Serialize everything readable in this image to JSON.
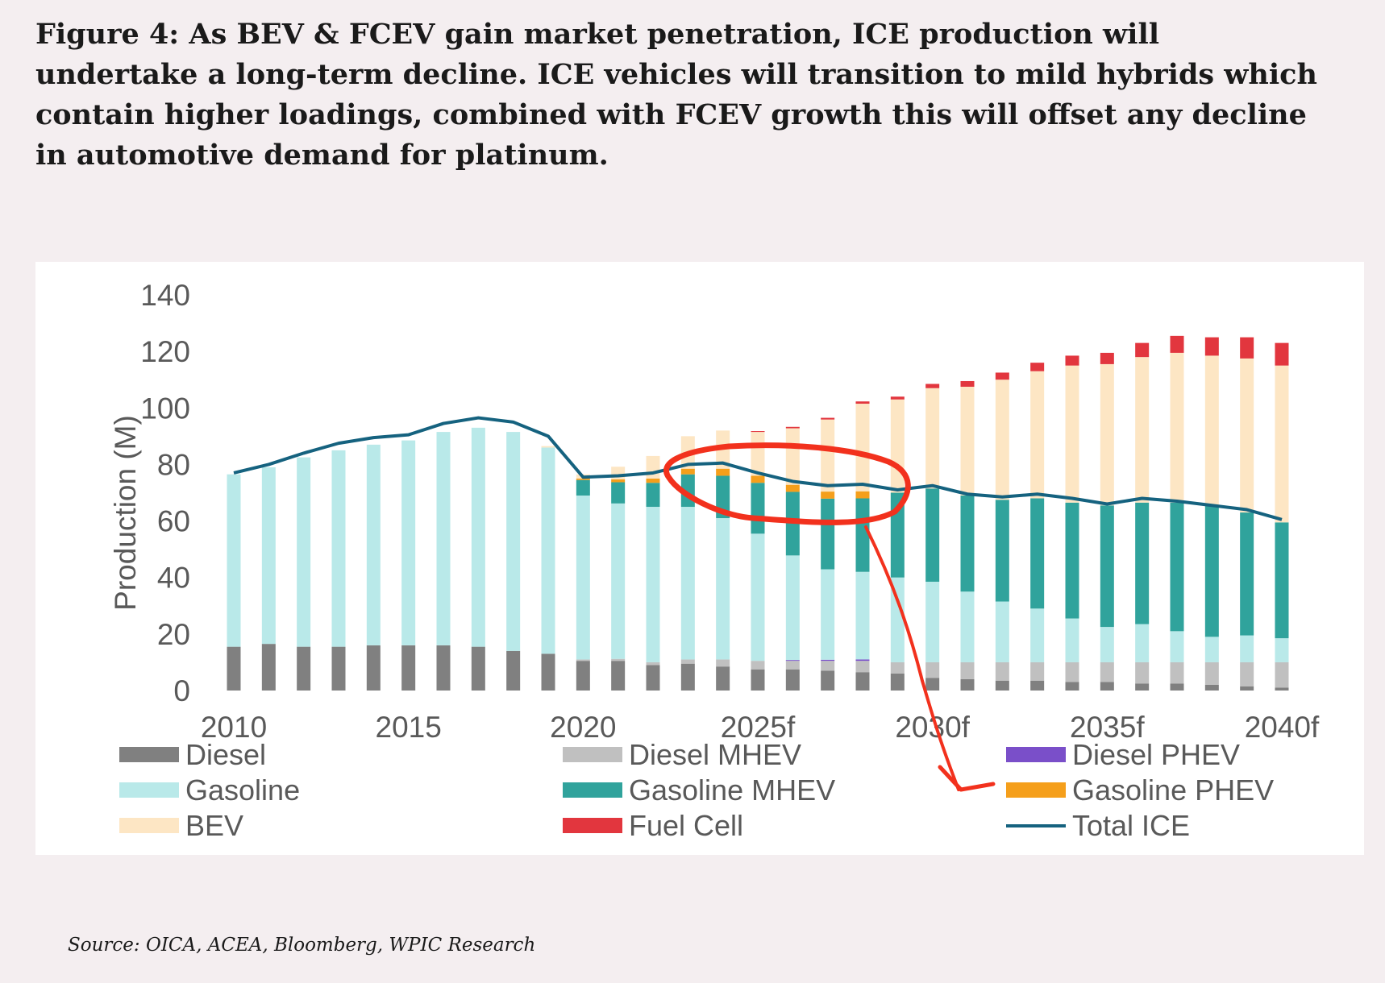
{
  "caption": "Figure 4: As BEV & FCEV gain market penetration, ICE production will undertake a long-term decline. ICE vehicles will transition to mild hybrids which contain higher loadings, combined with FCEV growth this will offset any decline in automotive demand for platinum.",
  "source": "Source: OICA, ACEA, Bloomberg, WPIC Research",
  "colors": {
    "diesel": "#808080",
    "diesel_mhev": "#c0c0c0",
    "diesel_phev": "#7a4fc9",
    "gasoline": "#b9e9e9",
    "gasoline_mhev": "#30a39c",
    "gasoline_phev": "#f59f1b",
    "bev": "#fde6c4",
    "fuel_cell": "#e2363e",
    "total_ice": "#15627f",
    "annotation": "#f2311d"
  },
  "chart_data": {
    "type": "bar",
    "stacked": true,
    "title": "",
    "xlabel": "",
    "ylabel": "Production (M)",
    "ylim": [
      0,
      140
    ],
    "yticks": [
      0,
      20,
      40,
      60,
      80,
      100,
      120,
      140
    ],
    "grid": false,
    "legend_position": "bottom",
    "categories": [
      "2010",
      "2011",
      "2012",
      "2013",
      "2014",
      "2015",
      "2016",
      "2017",
      "2018",
      "2019",
      "2020",
      "2021",
      "2022",
      "2023",
      "2024",
      "2025f",
      "2026f",
      "2027f",
      "2028f",
      "2029f",
      "2030f",
      "2031f",
      "2032f",
      "2033f",
      "2034f",
      "2035f",
      "2036f",
      "2037f",
      "2038f",
      "2039f",
      "2040f"
    ],
    "x_tick_labels": [
      {
        "index": 0,
        "label": "2010"
      },
      {
        "index": 5,
        "label": "2015"
      },
      {
        "index": 10,
        "label": "2020"
      },
      {
        "index": 15,
        "label": "2025f"
      },
      {
        "index": 20,
        "label": "2030f"
      },
      {
        "index": 25,
        "label": "2035f"
      },
      {
        "index": 30,
        "label": "2040f"
      }
    ],
    "series": [
      {
        "key": "diesel",
        "name": "Diesel",
        "values": [
          15.5,
          16.5,
          15.5,
          15.5,
          16,
          16,
          16,
          15.5,
          14,
          13,
          10.5,
          10.5,
          9,
          9.5,
          8.5,
          7.5,
          7.5,
          7,
          6.5,
          6,
          4.5,
          4,
          3.5,
          3.5,
          3,
          3,
          2.5,
          2.5,
          2,
          1.5,
          1
        ]
      },
      {
        "key": "diesel_mhev",
        "name": "Diesel MHEV",
        "values": [
          0,
          0,
          0,
          0,
          0,
          0,
          0,
          0,
          0,
          0,
          0.5,
          0.7,
          1,
          1.5,
          2.5,
          3,
          3,
          3.5,
          4,
          4,
          5.5,
          6,
          6.5,
          6.5,
          7,
          7,
          7.5,
          7.5,
          8,
          8.5,
          9
        ]
      },
      {
        "key": "diesel_phev",
        "name": "Diesel PHEV",
        "values": [
          0,
          0,
          0,
          0,
          0,
          0,
          0,
          0,
          0,
          0,
          0,
          0,
          0,
          0,
          0,
          0,
          0.3,
          0.4,
          0.5,
          0,
          0,
          0,
          0,
          0,
          0,
          0,
          0,
          0,
          0,
          0,
          0
        ]
      },
      {
        "key": "gasoline",
        "name": "Gasoline",
        "values": [
          61,
          62.5,
          67,
          69.5,
          71,
          72.5,
          75.5,
          77.5,
          77.5,
          73,
          58,
          55,
          55,
          54,
          50,
          45,
          37,
          32,
          31,
          30,
          28.5,
          25,
          21.5,
          19,
          15.5,
          12.5,
          13.5,
          11,
          9,
          9.5,
          8.5
        ]
      },
      {
        "key": "gasoline_mhev",
        "name": "Gasoline MHEV",
        "values": [
          0,
          0,
          0,
          0,
          0,
          0,
          0,
          0,
          0,
          0,
          5.5,
          7.5,
          8.5,
          11.5,
          15,
          18,
          22.5,
          25,
          26,
          30,
          33,
          34,
          36,
          39,
          41,
          43,
          43,
          45.5,
          46.5,
          43.5,
          41
        ]
      },
      {
        "key": "gasoline_phev",
        "name": "Gasoline PHEV",
        "values": [
          0,
          0,
          0,
          0,
          0,
          0,
          0,
          0,
          0,
          0,
          0.5,
          1,
          1.5,
          2,
          2.5,
          2.5,
          2.5,
          2.5,
          2.5,
          0,
          0,
          0,
          0,
          0,
          0,
          0,
          0,
          0,
          0,
          0,
          0
        ]
      },
      {
        "key": "bev",
        "name": "BEV",
        "values": [
          0,
          0,
          0,
          0,
          0,
          0,
          0,
          0,
          0,
          0.5,
          1.5,
          4.5,
          8,
          11.5,
          13.5,
          15.5,
          20,
          25.5,
          31,
          33,
          35.5,
          38.5,
          42.5,
          45,
          48.5,
          50,
          51.5,
          53,
          53,
          54.5,
          55.5
        ]
      },
      {
        "key": "fuel_cell",
        "name": "Fuel Cell",
        "values": [
          0,
          0,
          0,
          0,
          0,
          0,
          0,
          0,
          0,
          0,
          0,
          0,
          0,
          0,
          0,
          0.3,
          0.5,
          0.6,
          0.8,
          1,
          1.5,
          2,
          2.5,
          3,
          3.5,
          4,
          5,
          6,
          6.5,
          7.5,
          8
        ]
      }
    ],
    "line": {
      "key": "total_ice",
      "name": "Total ICE",
      "values": [
        77,
        80,
        84,
        87.5,
        89.5,
        90.5,
        94.5,
        96.5,
        95,
        90,
        75.5,
        76,
        77,
        80,
        80.5,
        77,
        74,
        72.5,
        73,
        71,
        72.5,
        69.5,
        68.5,
        69.5,
        68,
        66,
        68,
        67,
        65.5,
        64,
        60.5
      ]
    }
  },
  "legend": [
    {
      "key": "diesel",
      "label": "Diesel",
      "type": "bar"
    },
    {
      "key": "diesel_mhev",
      "label": "Diesel MHEV",
      "type": "bar"
    },
    {
      "key": "diesel_phev",
      "label": "Diesel PHEV",
      "type": "bar"
    },
    {
      "key": "gasoline",
      "label": "Gasoline",
      "type": "bar"
    },
    {
      "key": "gasoline_mhev",
      "label": "Gasoline MHEV",
      "type": "bar"
    },
    {
      "key": "gasoline_phev",
      "label": "Gasoline PHEV",
      "type": "bar"
    },
    {
      "key": "bev",
      "label": "BEV",
      "type": "bar"
    },
    {
      "key": "fuel_cell",
      "label": "Fuel Cell",
      "type": "bar"
    },
    {
      "key": "total_ice",
      "label": "Total ICE",
      "type": "line"
    }
  ]
}
